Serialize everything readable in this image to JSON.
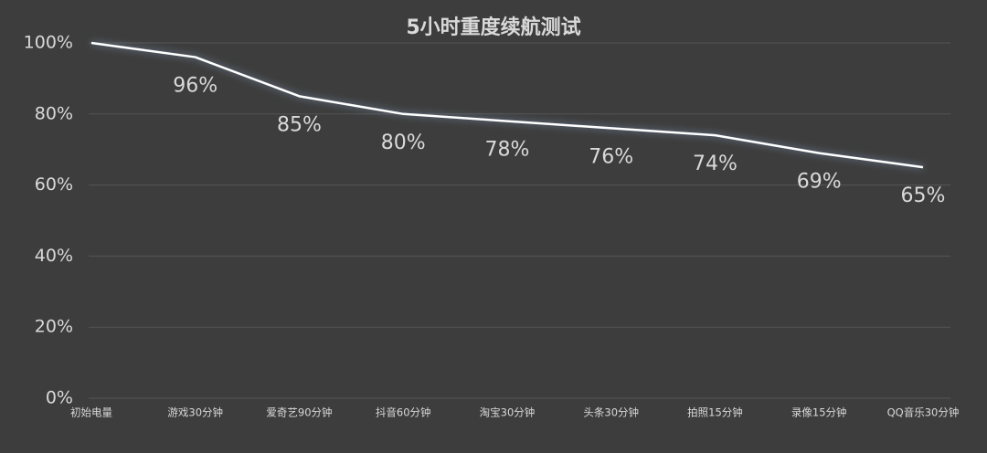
{
  "chart_data": {
    "type": "line",
    "title": "5小时重度续航测试",
    "categories": [
      "初始电量",
      "游戏30分钟",
      "爱奇艺90分钟",
      "抖音60分钟",
      "淘宝30分钟",
      "头条30分钟",
      "拍照15分钟",
      "录像15分钟",
      "QQ音乐30分钟"
    ],
    "values": [
      100,
      96,
      85,
      80,
      78,
      76,
      74,
      69,
      65
    ],
    "value_labels": [
      null,
      "96%",
      "85%",
      "80%",
      "78%",
      "76%",
      "74%",
      "69%",
      "65%"
    ],
    "color": "#ffffff",
    "ylim": [
      0,
      100
    ],
    "yticks": [
      {
        "value": 0,
        "label": "0%"
      },
      {
        "value": 20,
        "label": "20%"
      },
      {
        "value": 40,
        "label": "40%"
      },
      {
        "value": 60,
        "label": "60%"
      },
      {
        "value": 80,
        "label": "80%"
      },
      {
        "value": 100,
        "label": "100%"
      }
    ],
    "grid": true
  }
}
